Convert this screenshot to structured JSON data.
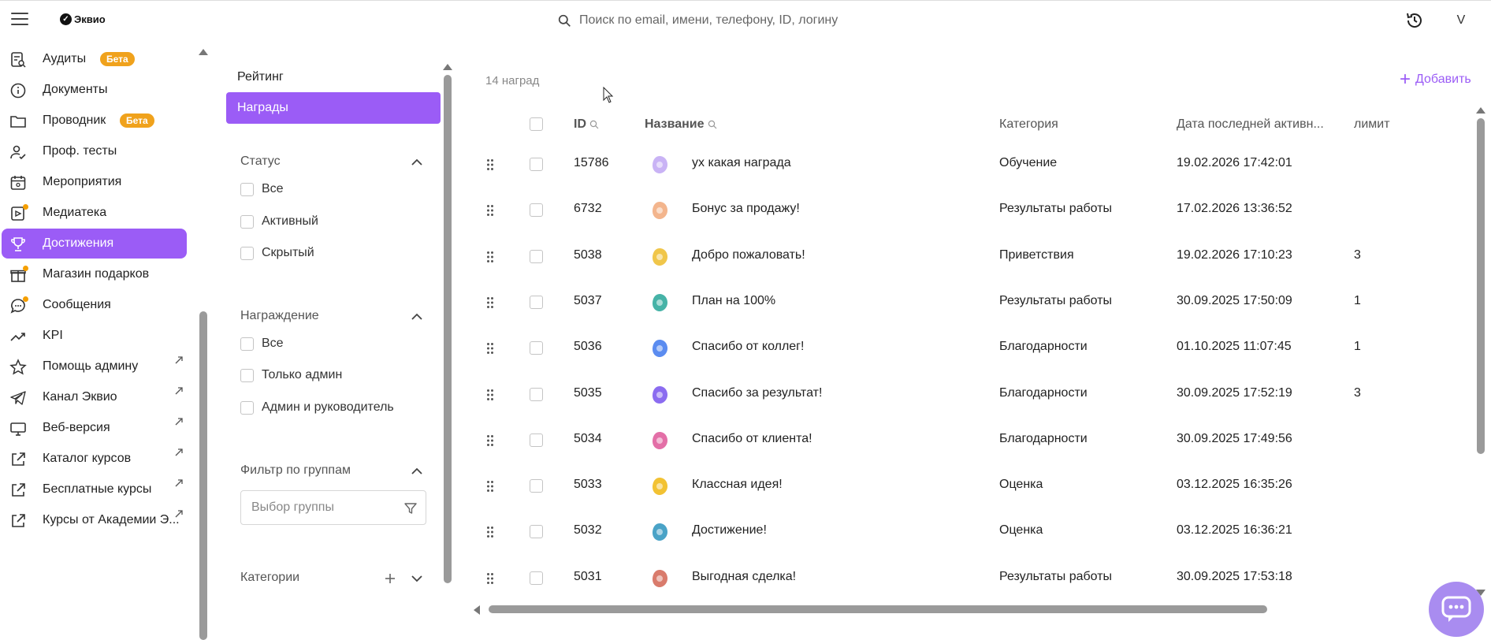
{
  "header": {
    "logo_text": "Эквио",
    "search_placeholder": "Поиск по email, имени, телефону, ID, логину",
    "user_initial": "V"
  },
  "sidebar": {
    "items": [
      {
        "label": "Аудиты",
        "icon": "audit-icon",
        "badge": "Бета"
      },
      {
        "label": "Документы",
        "icon": "info-icon"
      },
      {
        "label": "Проводник",
        "icon": "folder-icon",
        "badge": "Бета"
      },
      {
        "label": "Проф. тесты",
        "icon": "user-check-icon"
      },
      {
        "label": "Мероприятия",
        "icon": "calendar-icon"
      },
      {
        "label": "Медиатека",
        "icon": "media-icon",
        "dot": true
      },
      {
        "label": "Достижения",
        "icon": "trophy-icon",
        "active": true
      },
      {
        "label": "Магазин подарков",
        "icon": "gift-icon",
        "dot": true
      },
      {
        "label": "Сообщения",
        "icon": "chat-icon",
        "dot": true
      },
      {
        "label": "KPI",
        "icon": "trend-icon"
      },
      {
        "label": "Помощь админу",
        "icon": "star-icon",
        "external": true
      },
      {
        "label": "Канал Эквио",
        "icon": "telegram-icon",
        "external": true
      },
      {
        "label": "Веб-версия",
        "icon": "monitor-icon",
        "external": true
      },
      {
        "label": "Каталог курсов",
        "icon": "external-link-icon",
        "external": true
      },
      {
        "label": "Бесплатные курсы",
        "icon": "external-link-icon",
        "external": true
      },
      {
        "label": "Курсы от Академии Э...",
        "icon": "external-link-icon",
        "external": true
      }
    ]
  },
  "filters": {
    "tabs": [
      {
        "label": "Рейтинг",
        "active": false
      },
      {
        "label": "Награды",
        "active": true
      }
    ],
    "status": {
      "title": "Статус",
      "options": [
        "Все",
        "Активный",
        "Скрытый"
      ]
    },
    "award": {
      "title": "Награждение",
      "options": [
        "Все",
        "Только админ",
        "Админ и руководитель"
      ]
    },
    "group_filter": {
      "title": "Фильтр по группам",
      "placeholder": "Выбор группы"
    },
    "categories": {
      "title": "Категории"
    }
  },
  "main": {
    "count_label": "14 наград",
    "add_label": "Добавить",
    "columns": {
      "id": "ID",
      "name": "Название",
      "category": "Категория",
      "last_active": "Дата последней активн...",
      "limit": "лимит"
    },
    "rows": [
      {
        "id": "15786",
        "name": "ух какая награда",
        "category": "Обучение",
        "date": "19.02.2026 17:42:01",
        "limit": "",
        "icon": "image-placeholder-icon"
      },
      {
        "id": "6732",
        "name": "Бонус за продажу!",
        "category": "Результаты работы",
        "date": "17.02.2026 13:36:52",
        "limit": "",
        "icon": "thumbs-up-icon"
      },
      {
        "id": "5038",
        "name": "Добро пожаловать!",
        "category": "Приветствия",
        "date": "19.02.2026 17:10:23",
        "limit": "3",
        "icon": "welcome-icon"
      },
      {
        "id": "5037",
        "name": "План на 100%",
        "category": "Результаты работы",
        "date": "30.09.2025 17:50:09",
        "limit": "1",
        "icon": "plan-icon"
      },
      {
        "id": "5036",
        "name": "Спасибо от коллег!",
        "category": "Благодарности",
        "date": "01.10.2025 11:07:45",
        "limit": "1",
        "icon": "colleagues-icon"
      },
      {
        "id": "5035",
        "name": "Спасибо за результат!",
        "category": "Благодарности",
        "date": "30.09.2025 17:52:19",
        "limit": "3",
        "icon": "target-icon"
      },
      {
        "id": "5034",
        "name": "Спасибо от клиента!",
        "category": "Благодарности",
        "date": "30.09.2025 17:49:56",
        "limit": "",
        "icon": "client-icon"
      },
      {
        "id": "5033",
        "name": "Классная идея!",
        "category": "Оценка",
        "date": "03.12.2025 16:35:26",
        "limit": "",
        "icon": "lightbulb-icon"
      },
      {
        "id": "5032",
        "name": "Достижение!",
        "category": "Оценка",
        "date": "03.12.2025 16:36:21",
        "limit": "",
        "icon": "achievement-icon"
      },
      {
        "id": "5031",
        "name": "Выгодная сделка!",
        "category": "Результаты работы",
        "date": "30.09.2025 17:53:18",
        "limit": "",
        "icon": "deal-icon"
      }
    ]
  },
  "colors": {
    "accent": "#9b5cf6",
    "badge": "#f0a21c",
    "chat_button": "#a98cf0"
  }
}
